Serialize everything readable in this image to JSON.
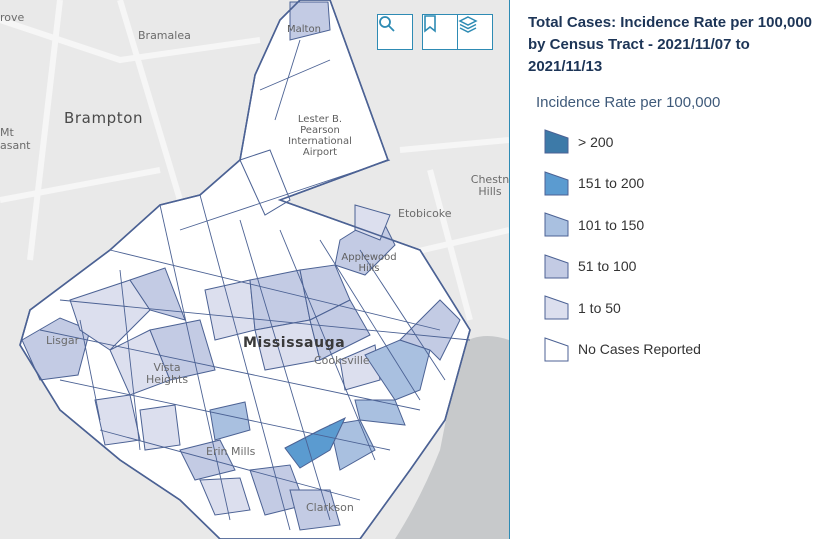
{
  "map": {
    "place_labels": {
      "rove": "rove",
      "bramalea": "Bramalea",
      "malton": "Malton",
      "brampton": "Brampton",
      "mt": "Mt",
      "asant": "asant",
      "airport": "Lester B. Pearson International Airport",
      "chestnut": "Chestn Hills",
      "etobicoke": "Etobicoke",
      "applewood": "Applewood Hills",
      "mississauga": "Mississauga",
      "cooksville": "Cooksville",
      "lisgar": "Lisgar",
      "vista": "Vista Heights",
      "erin_mills": "Erin Mills",
      "clarkson": "Clarkson"
    },
    "buttons": [
      {
        "name": "search",
        "icon": "search-icon"
      },
      {
        "name": "bookmark",
        "icon": "bookmark-icon"
      },
      {
        "name": "layers",
        "icon": "layers-icon"
      }
    ],
    "colors": {
      "over_200": "#3d7aa8",
      "151_200": "#5b9bd0",
      "101_150": "#a9c0e0",
      "51_100": "#c3cbe4",
      "1_50": "#dcdfee",
      "none": "#ffffff",
      "boundary": "#4c6294",
      "water": "#c7c9cb",
      "land": "#e9e9e9"
    }
  },
  "panel": {
    "title": "Total Cases: Incidence Rate per 100,000 by Census Tract - 2021/11/07 to 2021/11/13",
    "legend_heading": "Incidence Rate per 100,000",
    "legend": [
      {
        "label": "> 200",
        "color": "#3d7aa8"
      },
      {
        "label": "151 to 200",
        "color": "#5b9bd0"
      },
      {
        "label": "101 to 150",
        "color": "#a9c0e0"
      },
      {
        "label": "51 to 100",
        "color": "#c3cbe4"
      },
      {
        "label": "1 to 50",
        "color": "#dcdfee"
      },
      {
        "label": "No Cases Reported",
        "color": "#ffffff"
      }
    ]
  }
}
